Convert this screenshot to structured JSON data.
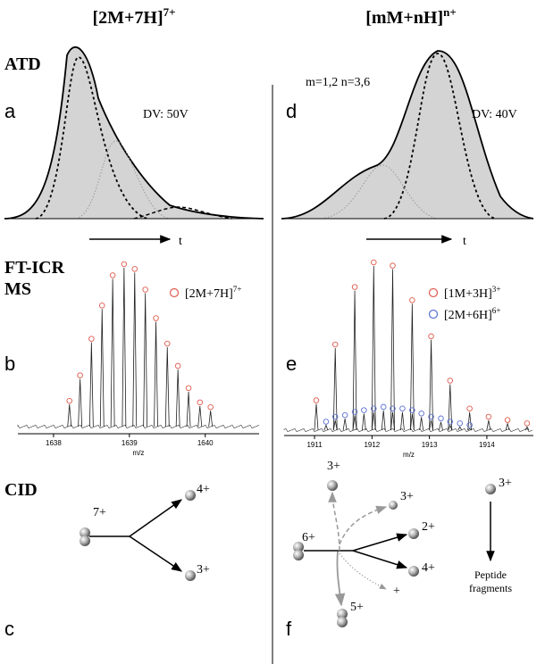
{
  "titles": {
    "left": {
      "text": "[2M+7H]",
      "sup": "7+"
    },
    "right": {
      "text": "[mM+nH]",
      "sup": "n+"
    }
  },
  "atd": {
    "heading": "ATD",
    "a": {
      "letter": "a",
      "voltage": "DV: 50V",
      "axis": "t"
    },
    "d": {
      "letter": "d",
      "note": "m=1,2 n=3,6",
      "voltage": "DV: 40V",
      "axis": "t"
    }
  },
  "ms": {
    "heading": [
      "FT-ICR",
      "MS"
    ],
    "b": {
      "letter": "b",
      "xlabel": "m/z",
      "xlim": [
        1637.53,
        1640.71
      ],
      "xticks": [
        1638,
        1639,
        1640
      ],
      "series": [
        {
          "name": {
            "text": "[2M+7H]",
            "sup": "7+"
          },
          "color": "#e05a4e",
          "mz": [
            1638.21,
            1638.35,
            1638.5,
            1638.64,
            1638.78,
            1638.93,
            1639.07,
            1639.21,
            1639.35,
            1639.5,
            1639.64,
            1639.78,
            1639.93,
            1640.07
          ],
          "intensity": [
            14,
            30,
            53,
            74,
            93,
            100,
            97,
            84,
            66,
            50,
            36,
            22,
            13,
            10
          ]
        }
      ]
    },
    "e": {
      "letter": "e",
      "xlabel": "m/z",
      "xlim": [
        1910.47,
        1914.81
      ],
      "xticks": [
        1911,
        1912,
        1913,
        1914
      ],
      "series": [
        {
          "name": {
            "text": "[1M+3H]",
            "sup": "3+"
          },
          "color": "#e05a4e",
          "mz": [
            1911.03,
            1911.36,
            1911.7,
            1912.03,
            1912.36,
            1912.7,
            1913.03,
            1913.36,
            1913.7,
            1914.03,
            1914.36,
            1914.7
          ],
          "intensity": [
            16,
            50,
            85,
            100,
            98,
            77,
            55,
            28,
            11,
            6,
            4,
            2
          ]
        },
        {
          "name": {
            "text": "[2M+6H]",
            "sup": "6+"
          },
          "color": "#5a6fd0",
          "mz": [
            1911.2,
            1911.36,
            1911.53,
            1911.7,
            1911.86,
            1912.03,
            1912.2,
            1912.36,
            1912.53,
            1912.7,
            1912.86,
            1913.03,
            1913.2,
            1913.36,
            1913.53,
            1913.7
          ],
          "intensity": [
            3,
            6,
            7,
            9,
            10,
            11,
            12,
            11,
            11,
            10,
            8,
            6,
            5,
            3,
            2,
            1
          ]
        }
      ]
    }
  },
  "cid": {
    "heading": "CID",
    "c": {
      "letter": "c",
      "parent": "7+",
      "products": [
        "4+",
        "3+"
      ]
    },
    "f": {
      "letter": "f",
      "parent": "6+",
      "products": [
        "3+",
        "3+",
        "2+",
        "4+",
        "+",
        "5+"
      ],
      "side_ion": "3+",
      "side_result": [
        "Peptide",
        "fragments"
      ]
    }
  }
}
